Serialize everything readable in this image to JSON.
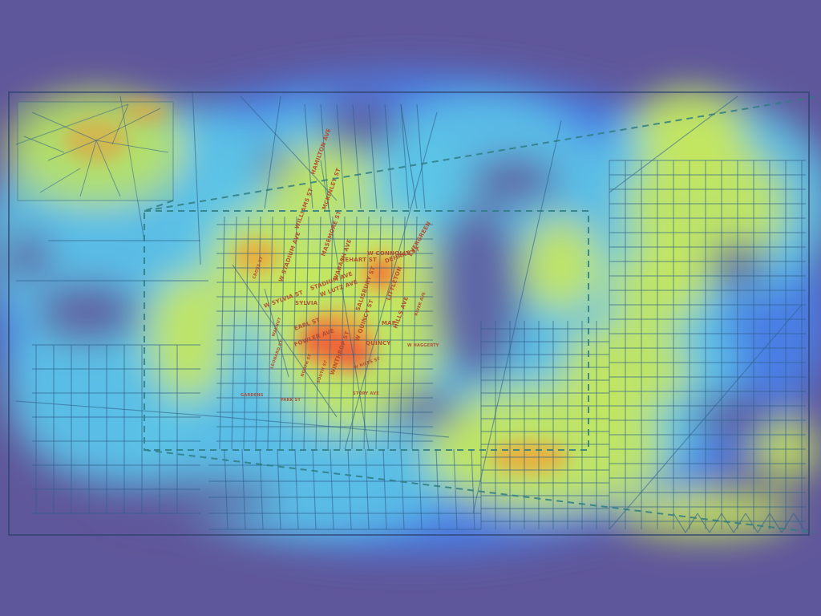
{
  "map": {
    "colors": {
      "background": "#5f579b",
      "heat_cold": "#4a80e8",
      "heat_cool": "#5cc4e6",
      "heat_warm": "#c8e85a",
      "heat_hot": "#f0a53a",
      "heat_peak": "#ef5a3a",
      "streets": "#2f5f8a",
      "label_text": "#b0472e",
      "frame": "#2c3f6c",
      "callout_dash": "#2f7d82"
    },
    "inset": {
      "visible_label": ""
    },
    "street_labels": [
      "HAMILTON AVE",
      "MCKINLEY ST",
      "WILLIAMS ST",
      "MASEMORE ST",
      "SEHART ST",
      "STADIUM AVE",
      "W STADIUM AVE",
      "W SYLVIA ST",
      "SYLVIA",
      "W LUTZ AVE",
      "EARL ST",
      "FOWLER AVE",
      "W QUINCY ST",
      "QUINCY",
      "WINTHROP ST",
      "SALISBURY ST",
      "MAP",
      "WABASH AVE",
      "LITTLETON",
      "DEHART ST",
      "W CONNOLLY",
      "HILLS AVE",
      "EVERGREEN",
      "W HAGGERTY",
      "LEONARD ST",
      "NORTH ST",
      "SOUTH ST",
      "RIVER AVE",
      "W NILES ST",
      "GARDENS",
      "STORY AVE",
      "CROSS ST",
      "PARK ST",
      "WALNUT"
    ]
  }
}
